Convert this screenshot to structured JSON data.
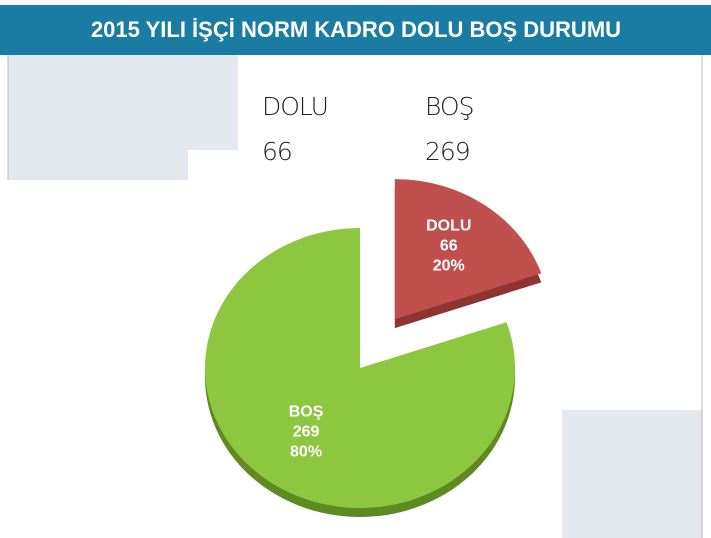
{
  "chart_data": {
    "type": "pie",
    "title": "2015 YILI İŞÇİ NORM KADRO DOLU BOŞ DURUMU",
    "categories": [
      "DOLU",
      "BOŞ"
    ],
    "values": [
      66,
      269
    ],
    "percent_labels": [
      "20%",
      "80%"
    ],
    "colors": [
      "#c0504d",
      "#8dc63f"
    ],
    "edge_colors": [
      "#8e3532",
      "#5e8a22"
    ],
    "explode": [
      true,
      false
    ]
  }
}
